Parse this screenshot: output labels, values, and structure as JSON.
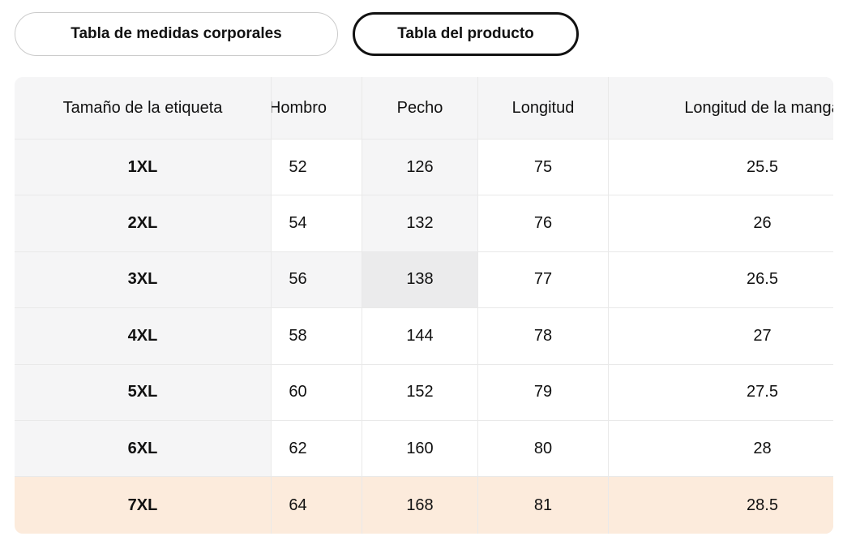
{
  "tabs": [
    {
      "label": "Tabla de medidas corporales",
      "selected": false
    },
    {
      "label": "Tabla del producto",
      "selected": true
    }
  ],
  "size_chart": {
    "columns": [
      "Tamaño de la etiqueta",
      "Hombro",
      "Pecho",
      "Longitud",
      "Longitud de la manga"
    ],
    "rows": [
      {
        "size": "1XL",
        "values": [
          "52",
          "126",
          "75",
          "25.5"
        ]
      },
      {
        "size": "2XL",
        "values": [
          "54",
          "132",
          "76",
          "26"
        ]
      },
      {
        "size": "3XL",
        "values": [
          "56",
          "138",
          "77",
          "26.5"
        ]
      },
      {
        "size": "4XL",
        "values": [
          "58",
          "144",
          "78",
          "27"
        ]
      },
      {
        "size": "5XL",
        "values": [
          "60",
          "152",
          "79",
          "27.5"
        ]
      },
      {
        "size": "6XL",
        "values": [
          "62",
          "160",
          "80",
          "28"
        ]
      },
      {
        "size": "7XL",
        "values": [
          "64",
          "168",
          "81",
          "28.5"
        ]
      }
    ],
    "selected_row": "7XL",
    "hovered_cell": {
      "row": "3XL",
      "column": "Pecho"
    },
    "colors": {
      "selected_row_bg": "#FCEBDC",
      "header_bg": "#F5F5F6",
      "hover_cell_bg": "#EBEBEC",
      "hover_path_bg": "#F5F5F6",
      "cell_border": "#E9E9E9",
      "text": "#111111",
      "tab_border_inactive": "#CBCBCB",
      "tab_border_active": "#111111"
    }
  }
}
